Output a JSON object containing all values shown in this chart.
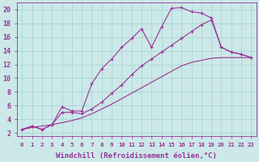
{
  "background_color": "#cce8e8",
  "line_color": "#993399",
  "xlabel": "Windchill (Refroidissement éolien,°C)",
  "xlabel_fontsize": 6.5,
  "xtick_fontsize": 5.2,
  "ytick_fontsize": 6.0,
  "xlim": [
    -0.5,
    23.5
  ],
  "ylim": [
    1.5,
    21.0
  ],
  "yticks": [
    2,
    4,
    6,
    8,
    10,
    12,
    14,
    16,
    18,
    20
  ],
  "xticks": [
    0,
    1,
    2,
    3,
    4,
    5,
    6,
    7,
    8,
    9,
    10,
    11,
    12,
    13,
    14,
    15,
    16,
    17,
    18,
    19,
    20,
    21,
    22,
    23
  ],
  "line1_x": [
    0,
    1,
    2,
    3,
    4,
    5,
    6,
    7,
    8,
    9,
    10,
    11,
    12,
    13,
    14,
    15,
    16,
    17,
    18,
    19,
    20,
    21,
    22,
    23
  ],
  "line1_y": [
    2.5,
    3.0,
    2.5,
    3.2,
    5.8,
    5.2,
    5.2,
    9.2,
    11.4,
    12.8,
    14.5,
    15.8,
    17.2,
    14.5,
    17.5,
    20.2,
    20.3,
    19.7,
    19.5,
    18.8,
    14.5,
    13.8,
    13.5,
    13.0
  ],
  "line2_x": [
    0,
    1,
    2,
    3,
    4,
    5,
    6,
    7,
    8,
    9,
    10,
    11,
    12,
    13,
    14,
    15,
    16,
    17,
    18,
    19,
    20,
    21,
    22,
    23
  ],
  "line2_y": [
    2.5,
    3.0,
    2.5,
    3.2,
    5.0,
    5.0,
    4.8,
    5.5,
    6.5,
    7.8,
    9.0,
    10.5,
    11.8,
    12.8,
    13.8,
    14.8,
    15.8,
    16.8,
    17.8,
    18.5,
    14.5,
    13.8,
    13.5,
    13.0
  ],
  "line3_x": [
    0,
    1,
    2,
    3,
    4,
    5,
    6,
    7,
    8,
    9,
    10,
    11,
    12,
    13,
    14,
    15,
    16,
    17,
    18,
    19,
    20,
    21,
    22,
    23
  ],
  "line3_y": [
    2.5,
    2.8,
    3.0,
    3.2,
    3.5,
    3.8,
    4.2,
    4.8,
    5.5,
    6.2,
    7.0,
    7.8,
    8.6,
    9.4,
    10.2,
    11.0,
    11.8,
    12.3,
    12.6,
    12.9,
    13.0,
    13.0,
    13.0,
    13.0
  ]
}
